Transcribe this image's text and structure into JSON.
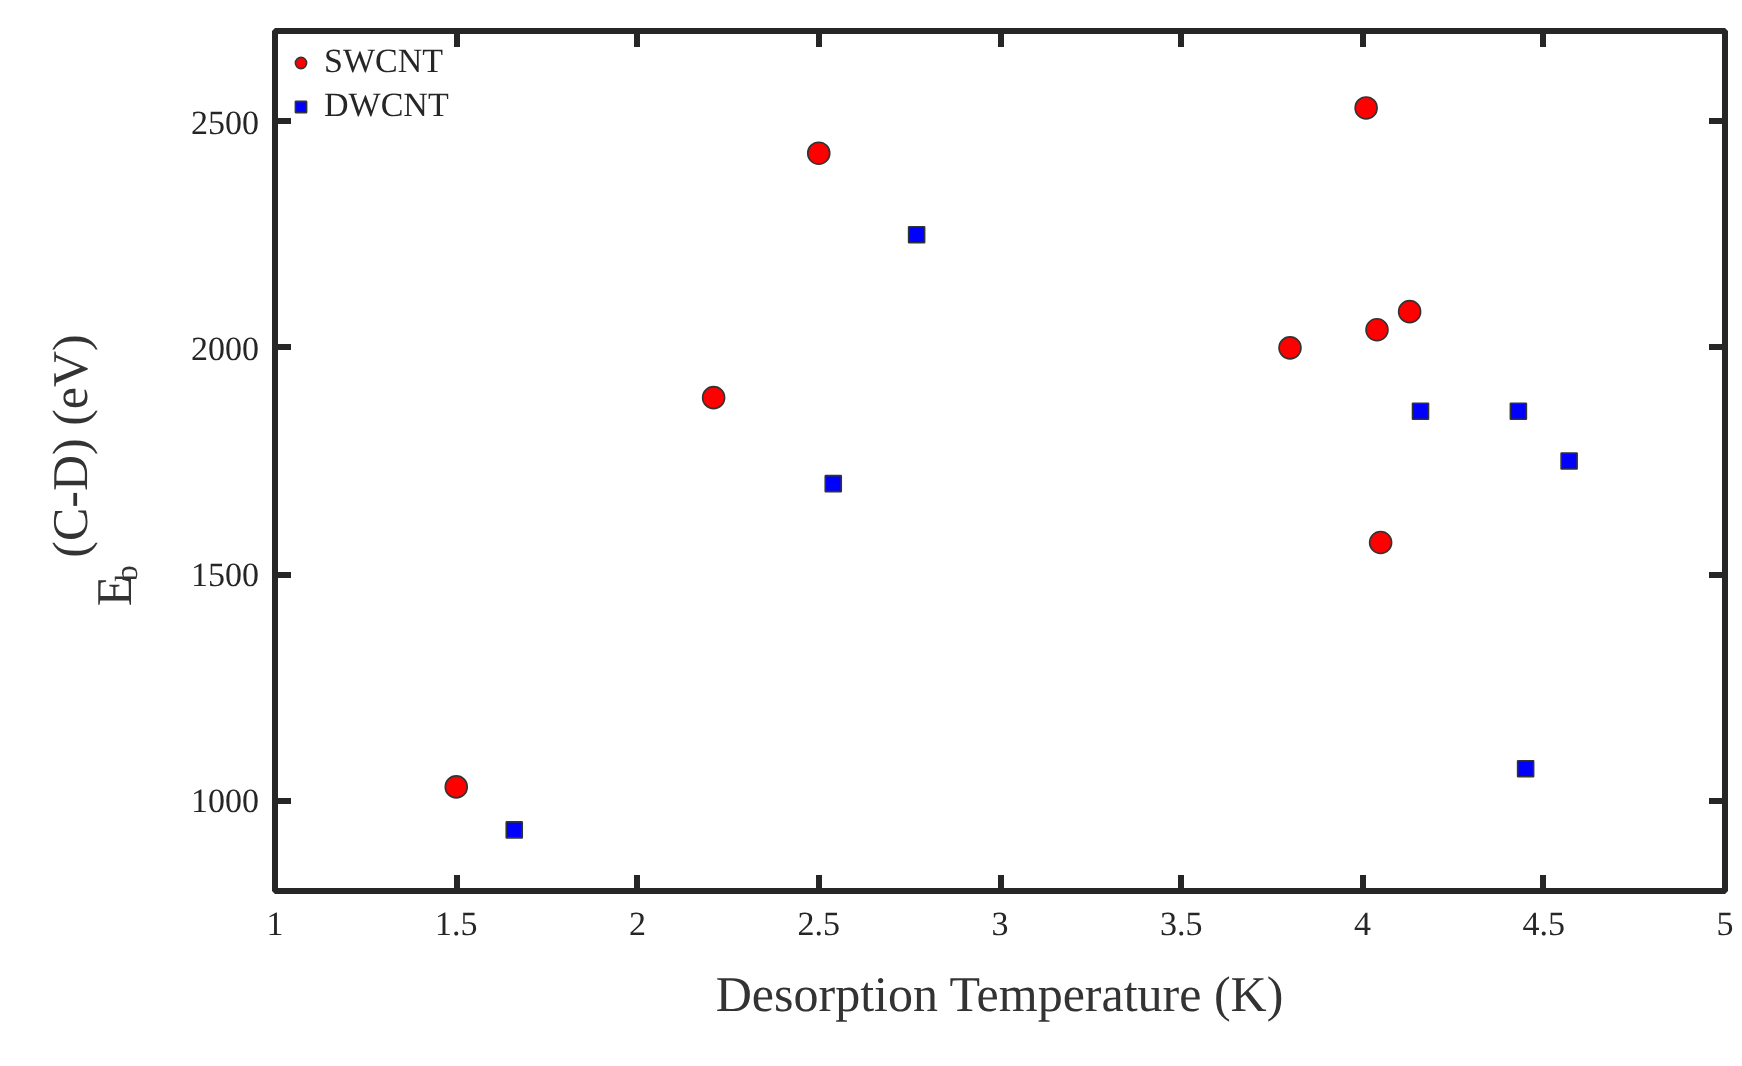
{
  "chart_data": {
    "type": "scatter",
    "xlabel": "Desorption Temperature (K)",
    "ylabel": "E$_{b}$(C-D) (eV)",
    "xlim": [
      1,
      5
    ],
    "xticks": [
      1,
      1.5,
      2,
      2.5,
      3,
      3.5,
      4,
      4.5,
      5
    ],
    "ylim": [
      800,
      2700
    ],
    "yticks": [
      1000,
      1500,
      2000,
      2500
    ],
    "grid": false,
    "legend": "top left",
    "series": [
      {
        "name": "SWCNT",
        "color": "#ff0000",
        "marker": "circle",
        "x": [
          1.5,
          2.21,
          2.5,
          3.8,
          4.01,
          4.04,
          4.05,
          4.13
        ],
        "values": [
          1030,
          1890,
          2430,
          2000,
          2530,
          2040,
          1570,
          2080
        ]
      },
      {
        "name": "DWCNT",
        "color": "#0000ff",
        "marker": "square",
        "x": [
          1.66,
          2.54,
          2.77,
          4.16,
          4.43,
          4.45,
          4.57
        ],
        "values": [
          935,
          1700,
          2250,
          1860,
          1860,
          1070,
          1750
        ]
      }
    ]
  }
}
